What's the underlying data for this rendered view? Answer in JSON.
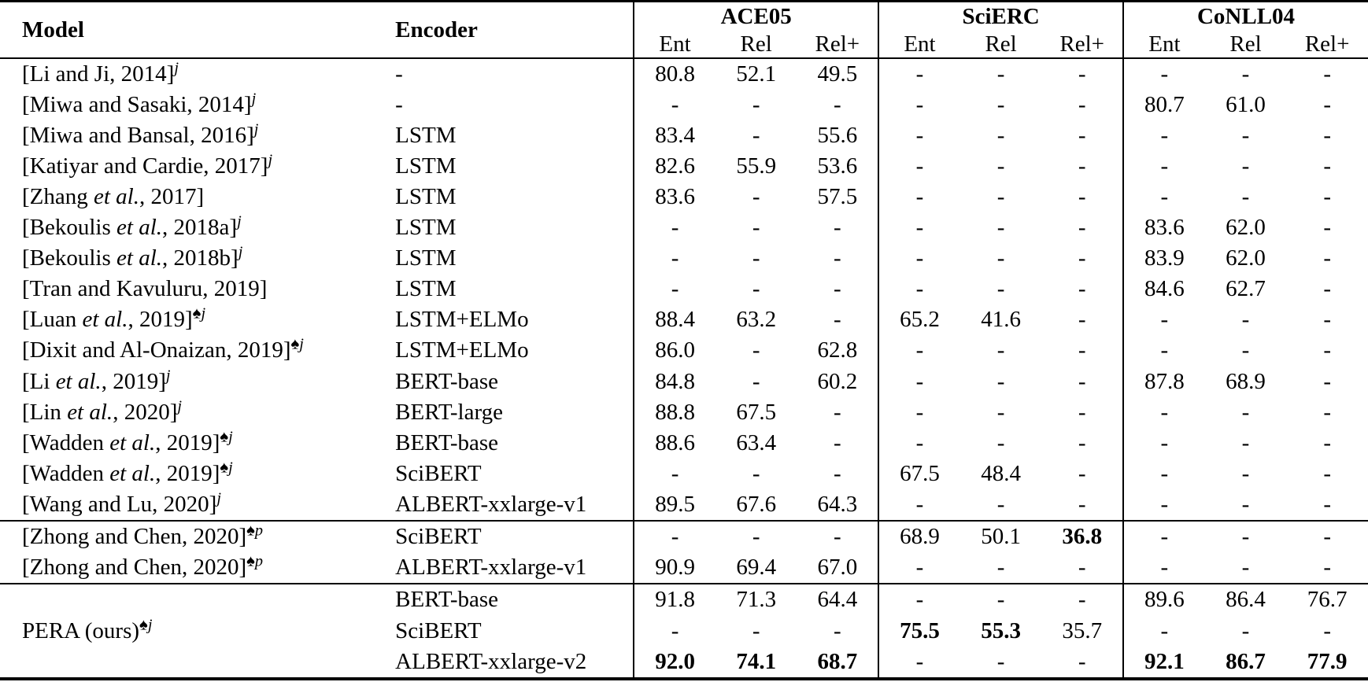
{
  "table": {
    "headers": {
      "model": "Model",
      "encoder": "Encoder",
      "sub_columns": [
        "Ent",
        "Rel",
        "Rel+"
      ],
      "groups": [
        {
          "label": "ACE05"
        },
        {
          "label": "SciERC"
        },
        {
          "label": "CoNLL04"
        }
      ]
    },
    "sections": [
      {
        "rows": [
          {
            "model": {
              "pre": "[Li and Ji, 2014]",
              "etal": "",
              "post": "",
              "sup": "j"
            },
            "encoder": "-",
            "values": [
              "80.8",
              "52.1",
              "49.5",
              "-",
              "-",
              "-",
              "-",
              "-",
              "-"
            ],
            "bold": []
          },
          {
            "model": {
              "pre": "[Miwa and Sasaki, 2014]",
              "etal": "",
              "post": "",
              "sup": "j"
            },
            "encoder": "-",
            "values": [
              "-",
              "-",
              "-",
              "-",
              "-",
              "-",
              "80.7",
              "61.0",
              "-"
            ],
            "bold": []
          },
          {
            "model": {
              "pre": "[Miwa and Bansal, 2016]",
              "etal": "",
              "post": "",
              "sup": "j"
            },
            "encoder": "LSTM",
            "values": [
              "83.4",
              "-",
              "55.6",
              "-",
              "-",
              "-",
              "-",
              "-",
              "-"
            ],
            "bold": []
          },
          {
            "model": {
              "pre": "[Katiyar and Cardie, 2017]",
              "etal": "",
              "post": "",
              "sup": "j"
            },
            "encoder": "LSTM",
            "values": [
              "82.6",
              "55.9",
              "53.6",
              "-",
              "-",
              "-",
              "-",
              "-",
              "-"
            ],
            "bold": []
          },
          {
            "model": {
              "pre": "[Zhang ",
              "etal": "et al.",
              "post": ", 2017]",
              "sup": ""
            },
            "encoder": "LSTM",
            "values": [
              "83.6",
              "-",
              "57.5",
              "-",
              "-",
              "-",
              "-",
              "-",
              "-"
            ],
            "bold": []
          },
          {
            "model": {
              "pre": "[Bekoulis ",
              "etal": "et al.",
              "post": ", 2018a]",
              "sup": "j"
            },
            "encoder": "LSTM",
            "values": [
              "-",
              "-",
              "-",
              "-",
              "-",
              "-",
              "83.6",
              "62.0",
              "-"
            ],
            "bold": []
          },
          {
            "model": {
              "pre": "[Bekoulis ",
              "etal": "et al.",
              "post": ", 2018b]",
              "sup": "j"
            },
            "encoder": "LSTM",
            "values": [
              "-",
              "-",
              "-",
              "-",
              "-",
              "-",
              "83.9",
              "62.0",
              "-"
            ],
            "bold": []
          },
          {
            "model": {
              "pre": "[Tran and Kavuluru, 2019]",
              "etal": "",
              "post": "",
              "sup": ""
            },
            "encoder": "LSTM",
            "values": [
              "-",
              "-",
              "-",
              "-",
              "-",
              "-",
              "84.6",
              "62.7",
              "-"
            ],
            "bold": []
          },
          {
            "model": {
              "pre": "[Luan ",
              "etal": "et al.",
              "post": ", 2019]",
              "sup": "♠j"
            },
            "encoder": "LSTM+ELMo",
            "values": [
              "88.4",
              "63.2",
              "-",
              "65.2",
              "41.6",
              "-",
              "-",
              "-",
              "-"
            ],
            "bold": []
          },
          {
            "model": {
              "pre": "[Dixit and Al-Onaizan, 2019]",
              "etal": "",
              "post": "",
              "sup": "♠j"
            },
            "encoder": "LSTM+ELMo",
            "values": [
              "86.0",
              "-",
              "62.8",
              "-",
              "-",
              "-",
              "-",
              "-",
              "-"
            ],
            "bold": []
          },
          {
            "model": {
              "pre": "[Li ",
              "etal": "et al.",
              "post": ", 2019]",
              "sup": "j"
            },
            "encoder": "BERT-base",
            "values": [
              "84.8",
              "-",
              "60.2",
              "-",
              "-",
              "-",
              "87.8",
              "68.9",
              "-"
            ],
            "bold": []
          },
          {
            "model": {
              "pre": "[Lin ",
              "etal": "et al.",
              "post": ", 2020]",
              "sup": "j"
            },
            "encoder": "BERT-large",
            "values": [
              "88.8",
              "67.5",
              "-",
              "-",
              "-",
              "-",
              "-",
              "-",
              "-"
            ],
            "bold": []
          },
          {
            "model": {
              "pre": "[Wadden ",
              "etal": "et al.",
              "post": ", 2019]",
              "sup": "♠j"
            },
            "encoder": "BERT-base",
            "values": [
              "88.6",
              "63.4",
              "-",
              "-",
              "-",
              "-",
              "-",
              "-",
              "-"
            ],
            "bold": []
          },
          {
            "model": {
              "pre": "[Wadden ",
              "etal": "et al.",
              "post": ", 2019]",
              "sup": "♠j"
            },
            "encoder": "SciBERT",
            "values": [
              "-",
              "-",
              "-",
              "67.5",
              "48.4",
              "-",
              "-",
              "-",
              "-"
            ],
            "bold": []
          },
          {
            "model": {
              "pre": "[Wang and Lu, 2020]",
              "etal": "",
              "post": "",
              "sup": "j"
            },
            "encoder": "ALBERT-xxlarge-v1",
            "values": [
              "89.5",
              "67.6",
              "64.3",
              "-",
              "-",
              "-",
              "-",
              "-",
              "-"
            ],
            "bold": []
          }
        ]
      },
      {
        "rows": [
          {
            "model": {
              "pre": "[Zhong and Chen, 2020]",
              "etal": "",
              "post": "",
              "sup": "♠p"
            },
            "encoder": "SciBERT",
            "values": [
              "-",
              "-",
              "-",
              "68.9",
              "50.1",
              "36.8",
              "-",
              "-",
              "-"
            ],
            "bold": [
              5
            ]
          },
          {
            "model": {
              "pre": "[Zhong and Chen, 2020]",
              "etal": "",
              "post": "",
              "sup": "♠p"
            },
            "encoder": "ALBERT-xxlarge-v1",
            "values": [
              "90.9",
              "69.4",
              "67.0",
              "-",
              "-",
              "-",
              "-",
              "-",
              "-"
            ],
            "bold": []
          }
        ]
      },
      {
        "multirow_model": {
          "pre": "PERA (ours)",
          "etal": "",
          "post": "",
          "sup": "♠j"
        },
        "rows": [
          {
            "encoder": "BERT-base",
            "values": [
              "91.8",
              "71.3",
              "64.4",
              "-",
              "-",
              "-",
              "89.6",
              "86.4",
              "76.7"
            ],
            "bold": []
          },
          {
            "encoder": "SciBERT",
            "values": [
              "-",
              "-",
              "-",
              "75.5",
              "55.3",
              "35.7",
              "-",
              "-",
              "-"
            ],
            "bold": [
              3,
              4
            ]
          },
          {
            "encoder": "ALBERT-xxlarge-v2",
            "values": [
              "92.0",
              "74.1",
              "68.7",
              "-",
              "-",
              "-",
              "92.1",
              "86.7",
              "77.9"
            ],
            "bold": [
              0,
              1,
              2,
              6,
              7,
              8
            ]
          }
        ]
      }
    ]
  }
}
